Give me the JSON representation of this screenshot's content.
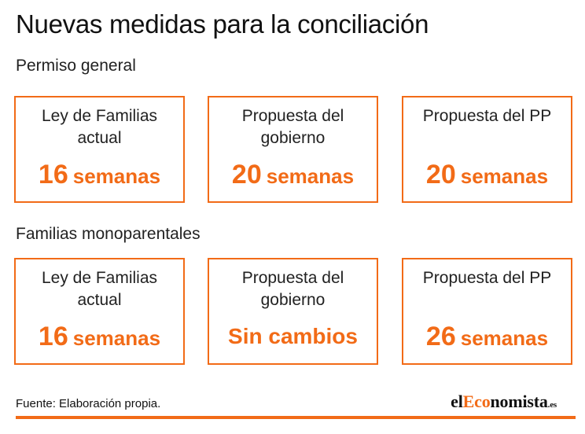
{
  "title": "Nuevas medidas para la conciliación",
  "sections": [
    {
      "label": "Permiso general",
      "cards": [
        {
          "label": "Ley de Familias actual",
          "number": "16",
          "unit": "semanas",
          "text": ""
        },
        {
          "label": "Propuesta del gobierno",
          "number": "20",
          "unit": "semanas",
          "text": ""
        },
        {
          "label": "Propuesta del PP",
          "number": "20",
          "unit": "semanas",
          "text": ""
        }
      ]
    },
    {
      "label": "Familias monoparentales",
      "cards": [
        {
          "label": "Ley de Familias actual",
          "number": "16",
          "unit": "semanas",
          "text": ""
        },
        {
          "label": "Propuesta del gobierno",
          "number": "",
          "unit": "",
          "text": "Sin cambios"
        },
        {
          "label": "Propuesta del PP",
          "number": "26",
          "unit": "semanas",
          "text": ""
        }
      ]
    }
  ],
  "footer": {
    "source": "Fuente: Elaboración propia.",
    "logo": {
      "prefix": "el",
      "accent": "Eco",
      "suffix": "nomista",
      "tld": ".es"
    }
  },
  "colors": {
    "accent": "#f26b17",
    "text": "#1a1a1a"
  }
}
